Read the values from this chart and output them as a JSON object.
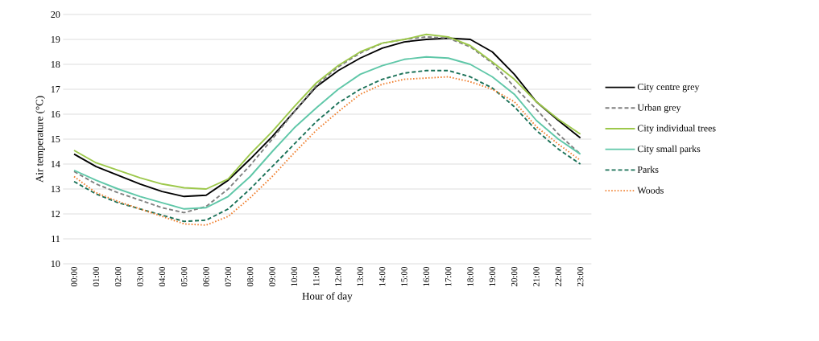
{
  "chart_data": {
    "type": "line",
    "xlabel": "Hour of day",
    "ylabel": "Air temperature (°C)",
    "categories": [
      "00:00",
      "01:00",
      "02:00",
      "03:00",
      "04:00",
      "05:00",
      "06:00",
      "07:00",
      "08:00",
      "09:00",
      "10:00",
      "11:00",
      "12:00",
      "13:00",
      "14:00",
      "15:00",
      "16:00",
      "17:00",
      "18:00",
      "19:00",
      "20:00",
      "21:00",
      "22:00",
      "23:00"
    ],
    "ylim": [
      10,
      20
    ],
    "yticks": [
      10,
      11,
      12,
      13,
      14,
      15,
      16,
      17,
      18,
      19,
      20
    ],
    "grid": "y",
    "legend": "right",
    "marker": "none",
    "series": [
      {
        "name": "City centre grey",
        "color": "#000000",
        "line_style": "solid",
        "values": [
          14.4,
          13.9,
          13.55,
          13.2,
          12.9,
          12.7,
          12.75,
          13.35,
          14.2,
          15.1,
          16.1,
          17.1,
          17.75,
          18.25,
          18.65,
          18.9,
          19.0,
          19.05,
          19.0,
          18.5,
          17.6,
          16.5,
          15.75,
          15.05
        ]
      },
      {
        "name": "Urban grey",
        "color": "#808080",
        "line_style": "dashed",
        "values": [
          13.7,
          13.2,
          12.85,
          12.55,
          12.25,
          12.05,
          12.3,
          13.0,
          13.95,
          15.0,
          16.1,
          17.15,
          17.9,
          18.45,
          18.85,
          19.0,
          19.1,
          19.05,
          18.7,
          18.05,
          17.1,
          16.2,
          15.2,
          14.4
        ]
      },
      {
        "name": "City individual trees",
        "color": "#9dc84b",
        "line_style": "solid",
        "values": [
          14.55,
          14.05,
          13.75,
          13.45,
          13.2,
          13.05,
          13.0,
          13.4,
          14.4,
          15.3,
          16.3,
          17.25,
          17.95,
          18.5,
          18.85,
          19.0,
          19.2,
          19.1,
          18.75,
          18.1,
          17.4,
          16.5,
          15.8,
          15.2
        ]
      },
      {
        "name": "City small parks",
        "color": "#5fc7a8",
        "line_style": "solid",
        "values": [
          13.75,
          13.35,
          13.0,
          12.7,
          12.45,
          12.2,
          12.25,
          12.7,
          13.5,
          14.5,
          15.45,
          16.25,
          17.0,
          17.6,
          17.95,
          18.2,
          18.3,
          18.25,
          18.0,
          17.5,
          16.8,
          15.75,
          15.0,
          14.4
        ]
      },
      {
        "name": "Parks",
        "color": "#1a7157",
        "line_style": "dashed",
        "values": [
          13.3,
          12.8,
          12.45,
          12.2,
          11.95,
          11.7,
          11.75,
          12.2,
          13.0,
          13.9,
          14.8,
          15.7,
          16.45,
          17.0,
          17.4,
          17.65,
          17.75,
          17.75,
          17.5,
          17.05,
          16.3,
          15.35,
          14.6,
          14.0
        ]
      },
      {
        "name": "Woods",
        "color": "#f08030",
        "line_style": "dotted",
        "values": [
          13.5,
          12.85,
          12.5,
          12.2,
          11.9,
          11.6,
          11.55,
          11.9,
          12.65,
          13.5,
          14.45,
          15.35,
          16.1,
          16.8,
          17.2,
          17.4,
          17.45,
          17.5,
          17.3,
          17.0,
          16.5,
          15.5,
          14.8,
          14.15
        ]
      }
    ]
  }
}
